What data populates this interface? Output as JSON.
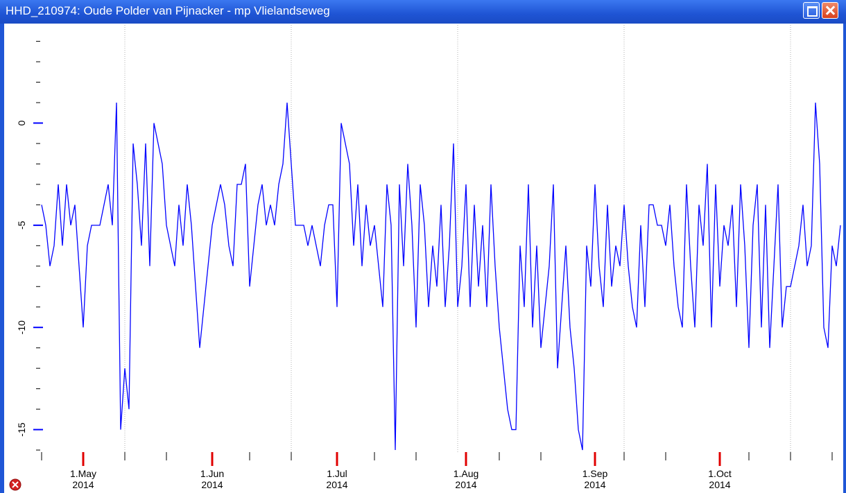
{
  "window": {
    "title": "HHD_210974: Oude Polder van Pijnacker - mp Vlielandseweg"
  },
  "chart_data": {
    "type": "line",
    "x": [
      "2014-04-21",
      "2014-04-22",
      "2014-04-23",
      "2014-04-24",
      "2014-04-25",
      "2014-04-26",
      "2014-04-27",
      "2014-04-28",
      "2014-04-29",
      "2014-04-30",
      "2014-05-01",
      "2014-05-02",
      "2014-05-03",
      "2014-05-04",
      "2014-05-05",
      "2014-05-06",
      "2014-05-07",
      "2014-05-08",
      "2014-05-09",
      "2014-05-10",
      "2014-05-11",
      "2014-05-12",
      "2014-05-13",
      "2014-05-14",
      "2014-05-15",
      "2014-05-16",
      "2014-05-17",
      "2014-05-18",
      "2014-05-19",
      "2014-05-20",
      "2014-05-21",
      "2014-05-22",
      "2014-05-23",
      "2014-05-24",
      "2014-05-25",
      "2014-05-26",
      "2014-05-27",
      "2014-05-28",
      "2014-05-29",
      "2014-05-30",
      "2014-05-31",
      "2014-06-01",
      "2014-06-02",
      "2014-06-03",
      "2014-06-04",
      "2014-06-05",
      "2014-06-06",
      "2014-06-07",
      "2014-06-08",
      "2014-06-09",
      "2014-06-10",
      "2014-06-11",
      "2014-06-12",
      "2014-06-13",
      "2014-06-14",
      "2014-06-15",
      "2014-06-16",
      "2014-06-17",
      "2014-06-18",
      "2014-06-19",
      "2014-06-20",
      "2014-06-21",
      "2014-06-22",
      "2014-06-23",
      "2014-06-24",
      "2014-06-25",
      "2014-06-26",
      "2014-06-27",
      "2014-06-28",
      "2014-06-29",
      "2014-06-30",
      "2014-07-01",
      "2014-07-02",
      "2014-07-03",
      "2014-07-04",
      "2014-07-05",
      "2014-07-06",
      "2014-07-07",
      "2014-07-08",
      "2014-07-09",
      "2014-07-10",
      "2014-07-11",
      "2014-07-12",
      "2014-07-13",
      "2014-07-14",
      "2014-07-15",
      "2014-07-16",
      "2014-07-17",
      "2014-07-18",
      "2014-07-19",
      "2014-07-20",
      "2014-07-21",
      "2014-07-22",
      "2014-07-23",
      "2014-07-24",
      "2014-07-25",
      "2014-07-26",
      "2014-07-27",
      "2014-07-28",
      "2014-07-29",
      "2014-07-30",
      "2014-07-31",
      "2014-08-01",
      "2014-08-02",
      "2014-08-03",
      "2014-08-04",
      "2014-08-05",
      "2014-08-06",
      "2014-08-07",
      "2014-08-08",
      "2014-08-09",
      "2014-08-10",
      "2014-08-11",
      "2014-08-12",
      "2014-08-13",
      "2014-08-14",
      "2014-08-15",
      "2014-08-16",
      "2014-08-17",
      "2014-08-18",
      "2014-08-19",
      "2014-08-20",
      "2014-08-21",
      "2014-08-22",
      "2014-08-23",
      "2014-08-24",
      "2014-08-25",
      "2014-08-26",
      "2014-08-27",
      "2014-08-28",
      "2014-08-29",
      "2014-08-30",
      "2014-08-31",
      "2014-09-01",
      "2014-09-02",
      "2014-09-03",
      "2014-09-04",
      "2014-09-05",
      "2014-09-06",
      "2014-09-07",
      "2014-09-08",
      "2014-09-09",
      "2014-09-10",
      "2014-09-11",
      "2014-09-12",
      "2014-09-13",
      "2014-09-14",
      "2014-09-15",
      "2014-09-16",
      "2014-09-17",
      "2014-09-18",
      "2014-09-19",
      "2014-09-20",
      "2014-09-21",
      "2014-09-22",
      "2014-09-23",
      "2014-09-24",
      "2014-09-25",
      "2014-09-26",
      "2014-09-27",
      "2014-09-28",
      "2014-09-29",
      "2014-09-30",
      "2014-10-01",
      "2014-10-02",
      "2014-10-03",
      "2014-10-04",
      "2014-10-05",
      "2014-10-06",
      "2014-10-07",
      "2014-10-08",
      "2014-10-09",
      "2014-10-10",
      "2014-10-11",
      "2014-10-12",
      "2014-10-13",
      "2014-10-14",
      "2014-10-15",
      "2014-10-16",
      "2014-10-17",
      "2014-10-18",
      "2014-10-19",
      "2014-10-20",
      "2014-10-21",
      "2014-10-22",
      "2014-10-23",
      "2014-10-24",
      "2014-10-25",
      "2014-10-26",
      "2014-10-27",
      "2014-10-28",
      "2014-10-29",
      "2014-10-30"
    ],
    "series": [
      {
        "color": "#0000ff",
        "values": [
          -4,
          -5,
          -7,
          -6,
          -3,
          -6,
          -3,
          -5,
          -4,
          -7,
          -10,
          -6,
          -5,
          -5,
          -5,
          -4,
          -3,
          -5,
          1,
          -15,
          -12,
          -14,
          -1,
          -3,
          -6,
          -1,
          -7,
          0,
          -1,
          -2,
          -5,
          -6,
          -7,
          -4,
          -6,
          -3,
          -5,
          -8,
          -11,
          -9,
          -7,
          -5,
          -4,
          -3,
          -4,
          -6,
          -7,
          -3,
          -3,
          -2,
          -8,
          -6,
          -4,
          -3,
          -5,
          -4,
          -5,
          -3,
          -2,
          1,
          -2,
          -5,
          -5,
          -5,
          -6,
          -5,
          -6,
          -7,
          -5,
          -4,
          -4,
          -9,
          0,
          -1,
          -2,
          -6,
          -3,
          -7,
          -4,
          -6,
          -5,
          -7,
          -9,
          -3,
          -5,
          -16,
          -3,
          -7,
          -2,
          -5,
          -10,
          -3,
          -5,
          -9,
          -6,
          -8,
          -4,
          -9,
          -6,
          -1,
          -9,
          -7,
          -3,
          -9,
          -4,
          -8,
          -5,
          -9,
          -3,
          -7,
          -10,
          -12,
          -14,
          -15,
          -15,
          -6,
          -9,
          -3,
          -10,
          -6,
          -11,
          -9,
          -7,
          -3,
          -12,
          -9,
          -6,
          -10,
          -12,
          -15,
          -16,
          -6,
          -8,
          -3,
          -7,
          -9,
          -4,
          -8,
          -6,
          -7,
          -4,
          -7,
          -9,
          -10,
          -5,
          -9,
          -4,
          -4,
          -5,
          -5,
          -6,
          -4,
          -7,
          -9,
          -10,
          -3,
          -7,
          -10,
          -4,
          -6,
          -2,
          -10,
          -3,
          -8,
          -5,
          -6,
          -4,
          -9,
          -3,
          -6,
          -11,
          -5,
          -3,
          -10,
          -4,
          -11,
          -7,
          -3,
          -10,
          -8,
          -8,
          -7,
          -6,
          -4,
          -7,
          -6,
          1,
          -2,
          -10,
          -11,
          -6,
          -7,
          -5
        ]
      }
    ],
    "xlim": [
      "2014-04-13",
      "2014-10-31"
    ],
    "xticks": [
      {
        "value": "2014-05-01",
        "label": [
          "1.May",
          "2014"
        ]
      },
      {
        "value": "2014-06-01",
        "label": [
          "1.Jun",
          "2014"
        ]
      },
      {
        "value": "2014-07-01",
        "label": [
          "1.Jul",
          "2014"
        ]
      },
      {
        "value": "2014-08-01",
        "label": [
          "1.Aug",
          "2014"
        ]
      },
      {
        "value": "2014-09-01",
        "label": [
          "1.Sep",
          "2014"
        ]
      },
      {
        "value": "2014-10-01",
        "label": [
          "1.Oct",
          "2014"
        ]
      }
    ],
    "xticks_minor": [
      "2014-04-21",
      "2014-05-11",
      "2014-05-21",
      "2014-06-10",
      "2014-06-20",
      "2014-07-10",
      "2014-07-20",
      "2014-08-09",
      "2014-08-19",
      "2014-09-08",
      "2014-09-18",
      "2014-10-08",
      "2014-10-18",
      "2014-10-28"
    ],
    "xgrid": [
      "2014-05-11",
      "2014-06-20",
      "2014-07-30",
      "2014-09-08",
      "2014-10-18"
    ],
    "ylim": [
      -16.1,
      4.8
    ],
    "yticks": [
      0,
      -5,
      -10,
      -15
    ],
    "yticks_minor": [
      -16,
      -14,
      -13,
      -12,
      -11,
      -9,
      -8,
      -7,
      -6,
      -4,
      -3,
      -2,
      -1,
      1,
      2,
      3,
      4
    ]
  }
}
